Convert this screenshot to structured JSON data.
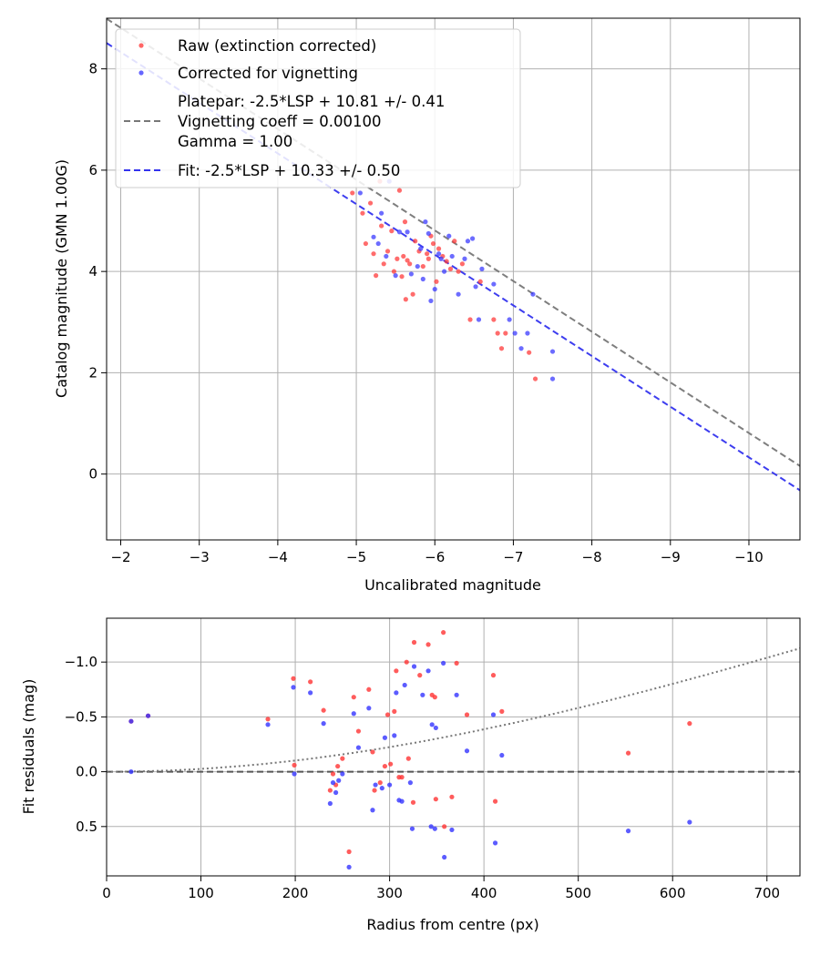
{
  "chart_data": [
    {
      "type": "scatter",
      "title": "",
      "xlabel": "Uncalibrated magnitude",
      "ylabel": "Catalog magnitude (GMN 1.00G)",
      "xlim": [
        -1.82,
        -10.65
      ],
      "ylim": [
        9.0,
        -1.3
      ],
      "xticks": [
        -2,
        -3,
        -4,
        -5,
        -6,
        -7,
        -8,
        -9,
        -10
      ],
      "xtick_labels": [
        "−2",
        "−3",
        "−4",
        "−5",
        "−6",
        "−7",
        "−8",
        "−9",
        "−10"
      ],
      "yticks": [
        0,
        2,
        4,
        6,
        8
      ],
      "ytick_labels": [
        "0",
        "2",
        "4",
        "6",
        "8"
      ],
      "grid": true,
      "legend": {
        "placement": "top-left",
        "entries": [
          {
            "label": "Raw (extinction corrected)",
            "marker": "dot",
            "color": "#ff3333"
          },
          {
            "label": "Corrected for vignetting",
            "marker": "dot",
            "color": "#3333ff"
          },
          {
            "label_lines": [
              "Platepar: -2.5*LSP + 10.81 +/- 0.41",
              "Vignetting coeff = 0.00100",
              "Gamma = 1.00"
            ],
            "marker": "dashed",
            "color": "#777777"
          },
          {
            "label": "Fit: -2.5*LSP + 10.33 +/- 0.50",
            "marker": "dashed",
            "color": "#3333ee"
          }
        ]
      },
      "lines": [
        {
          "name": "platepar",
          "slope": 1,
          "intercept": 10.81,
          "color": "#777777",
          "style": "dashed"
        },
        {
          "name": "fit",
          "slope": 1,
          "intercept": 10.33,
          "color": "#3333ee",
          "style": "dashed"
        }
      ],
      "series": [
        {
          "name": "Raw (extinction corrected)",
          "color": "#ff3333",
          "points": [
            [
              -4.95,
              5.55
            ],
            [
              -5.08,
              5.15
            ],
            [
              -5.12,
              4.55
            ],
            [
              -5.18,
              5.35
            ],
            [
              -5.22,
              4.35
            ],
            [
              -5.25,
              3.92
            ],
            [
              -5.3,
              5.78
            ],
            [
              -5.32,
              4.9
            ],
            [
              -5.35,
              4.15
            ],
            [
              -5.4,
              4.4
            ],
            [
              -5.45,
              4.8
            ],
            [
              -5.48,
              4.0
            ],
            [
              -5.52,
              4.25
            ],
            [
              -5.55,
              5.6
            ],
            [
              -5.58,
              3.9
            ],
            [
              -5.6,
              4.3
            ],
            [
              -5.62,
              4.98
            ],
            [
              -5.63,
              3.45
            ],
            [
              -5.65,
              4.22
            ],
            [
              -5.68,
              4.15
            ],
            [
              -5.72,
              3.55
            ],
            [
              -5.75,
              4.6
            ],
            [
              -5.8,
              4.4
            ],
            [
              -5.85,
              4.1
            ],
            [
              -5.9,
              4.35
            ],
            [
              -5.92,
              4.25
            ],
            [
              -5.95,
              4.7
            ],
            [
              -5.98,
              4.55
            ],
            [
              -6.02,
              3.8
            ],
            [
              -6.05,
              4.45
            ],
            [
              -6.1,
              4.3
            ],
            [
              -6.15,
              4.2
            ],
            [
              -6.2,
              4.05
            ],
            [
              -6.25,
              4.6
            ],
            [
              -6.3,
              4.0
            ],
            [
              -6.35,
              4.15
            ],
            [
              -6.45,
              3.05
            ],
            [
              -6.58,
              3.8
            ],
            [
              -6.75,
              3.05
            ],
            [
              -6.8,
              2.78
            ],
            [
              -6.85,
              2.48
            ],
            [
              -6.9,
              2.78
            ],
            [
              -7.2,
              2.4
            ],
            [
              -7.28,
              1.88
            ]
          ]
        },
        {
          "name": "Corrected for vignetting",
          "color": "#3333ff",
          "points": [
            [
              -5.05,
              5.55
            ],
            [
              -5.22,
              4.68
            ],
            [
              -5.28,
              4.55
            ],
            [
              -5.32,
              5.15
            ],
            [
              -5.38,
              4.3
            ],
            [
              -5.42,
              5.78
            ],
            [
              -5.5,
              3.92
            ],
            [
              -5.55,
              4.78
            ],
            [
              -5.65,
              4.78
            ],
            [
              -5.7,
              3.95
            ],
            [
              -5.78,
              4.1
            ],
            [
              -5.82,
              4.45
            ],
            [
              -5.85,
              3.85
            ],
            [
              -5.88,
              4.98
            ],
            [
              -5.92,
              4.75
            ],
            [
              -5.95,
              3.42
            ],
            [
              -6.0,
              3.65
            ],
            [
              -6.05,
              4.35
            ],
            [
              -6.08,
              4.25
            ],
            [
              -6.12,
              4.0
            ],
            [
              -6.18,
              4.7
            ],
            [
              -6.22,
              4.3
            ],
            [
              -6.3,
              3.55
            ],
            [
              -6.38,
              4.25
            ],
            [
              -6.42,
              4.6
            ],
            [
              -6.48,
              4.65
            ],
            [
              -6.52,
              3.7
            ],
            [
              -6.56,
              3.05
            ],
            [
              -6.6,
              4.05
            ],
            [
              -6.75,
              3.75
            ],
            [
              -6.95,
              3.05
            ],
            [
              -7.02,
              2.78
            ],
            [
              -7.1,
              2.48
            ],
            [
              -7.18,
              2.78
            ],
            [
              -7.25,
              3.55
            ],
            [
              -7.5,
              1.88
            ],
            [
              -7.5,
              2.42
            ]
          ]
        }
      ]
    },
    {
      "type": "scatter",
      "title": "",
      "xlabel": "Radius from centre (px)",
      "ylabel": "Fit residuals (mag)",
      "xlim": [
        0,
        735
      ],
      "ylim": [
        -1.4,
        0.95
      ],
      "xticks": [
        0,
        100,
        200,
        300,
        400,
        500,
        600,
        700
      ],
      "xtick_labels": [
        "0",
        "100",
        "200",
        "300",
        "400",
        "500",
        "600",
        "700"
      ],
      "yticks": [
        0.5,
        0.0,
        -0.5,
        -1.0
      ],
      "ytick_labels": [
        "0.5",
        "0.0",
        "−0.5",
        "−1.0"
      ],
      "grid": true,
      "lines": [
        {
          "name": "zero",
          "type": "horizontal",
          "y": 0,
          "color": "#555555",
          "style": "dashed"
        },
        {
          "name": "vignetting-curve",
          "type": "function",
          "formula": "-2.5*log10(1 + (0.001*r)^2) * 2.4",
          "color": "#777777",
          "style": "dotted"
        }
      ],
      "series": [
        {
          "name": "Raw (extinction corrected)",
          "color": "#ff3333",
          "points": [
            [
              26,
              -0.46
            ],
            [
              44,
              -0.51
            ],
            [
              171,
              -0.48
            ],
            [
              198,
              -0.85
            ],
            [
              199,
              -0.06
            ],
            [
              216,
              -0.82
            ],
            [
              230,
              -0.56
            ],
            [
              237,
              0.17
            ],
            [
              240,
              0.02
            ],
            [
              243,
              0.12
            ],
            [
              245,
              -0.05
            ],
            [
              250,
              -0.12
            ],
            [
              257,
              0.73
            ],
            [
              262,
              -0.68
            ],
            [
              267,
              -0.37
            ],
            [
              278,
              -0.75
            ],
            [
              282,
              -0.18
            ],
            [
              284,
              0.17
            ],
            [
              290,
              0.1
            ],
            [
              295,
              -0.05
            ],
            [
              298,
              -0.52
            ],
            [
              301,
              -0.07
            ],
            [
              305,
              -0.55
            ],
            [
              307,
              -0.92
            ],
            [
              310,
              0.05
            ],
            [
              313,
              0.05
            ],
            [
              318,
              -1.0
            ],
            [
              320,
              -0.12
            ],
            [
              325,
              0.28
            ],
            [
              326,
              -1.18
            ],
            [
              332,
              -0.88
            ],
            [
              341,
              -1.16
            ],
            [
              345,
              -0.7
            ],
            [
              348,
              -0.68
            ],
            [
              349,
              0.25
            ],
            [
              357,
              -1.27
            ],
            [
              358,
              0.5
            ],
            [
              366,
              0.23
            ],
            [
              371,
              -0.99
            ],
            [
              382,
              -0.52
            ],
            [
              410,
              -0.88
            ],
            [
              412,
              0.27
            ],
            [
              419,
              -0.55
            ],
            [
              553,
              -0.17
            ],
            [
              618,
              -0.44
            ]
          ]
        },
        {
          "name": "Corrected for vignetting",
          "color": "#3333ff",
          "points": [
            [
              26,
              0.0
            ],
            [
              26,
              -0.46
            ],
            [
              44,
              -0.51
            ],
            [
              171,
              -0.43
            ],
            [
              198,
              -0.77
            ],
            [
              199,
              0.02
            ],
            [
              216,
              -0.72
            ],
            [
              230,
              -0.44
            ],
            [
              237,
              0.29
            ],
            [
              240,
              0.1
            ],
            [
              243,
              0.19
            ],
            [
              246,
              0.08
            ],
            [
              250,
              0.02
            ],
            [
              257,
              0.87
            ],
            [
              262,
              -0.53
            ],
            [
              267,
              -0.22
            ],
            [
              278,
              -0.58
            ],
            [
              282,
              0.35
            ],
            [
              285,
              0.12
            ],
            [
              292,
              0.15
            ],
            [
              295,
              -0.31
            ],
            [
              300,
              0.12
            ],
            [
              305,
              -0.33
            ],
            [
              307,
              -0.72
            ],
            [
              310,
              0.26
            ],
            [
              313,
              0.27
            ],
            [
              316,
              -0.79
            ],
            [
              322,
              0.1
            ],
            [
              324,
              0.52
            ],
            [
              326,
              -0.96
            ],
            [
              335,
              -0.7
            ],
            [
              341,
              -0.92
            ],
            [
              344,
              0.5
            ],
            [
              345,
              -0.43
            ],
            [
              348,
              0.52
            ],
            [
              349,
              -0.4
            ],
            [
              357,
              -0.99
            ],
            [
              358,
              0.78
            ],
            [
              366,
              0.53
            ],
            [
              371,
              -0.7
            ],
            [
              382,
              -0.19
            ],
            [
              410,
              -0.52
            ],
            [
              412,
              0.65
            ],
            [
              419,
              -0.15
            ],
            [
              553,
              0.54
            ],
            [
              618,
              0.46
            ]
          ]
        }
      ]
    }
  ]
}
